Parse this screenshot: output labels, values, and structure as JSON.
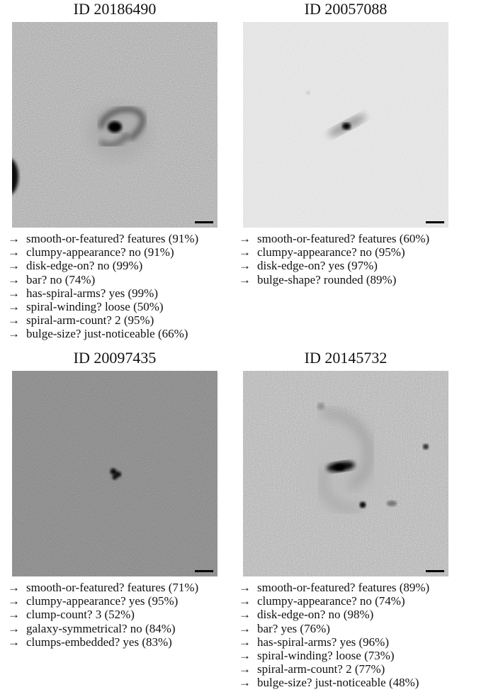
{
  "arrow_glyph": "→",
  "panels": [
    {
      "id_label": "ID 20186490",
      "labels": [
        "smooth-or-featured? features (91%)",
        "clumpy-appearance? no (91%)",
        "disk-edge-on? no (99%)",
        "bar? no (74%)",
        "has-spiral-arms? yes (99%)",
        "spiral-winding? loose (50%)",
        "spiral-arm-count? 2 (95%)",
        "bulge-size? just-noticeable (66%)"
      ]
    },
    {
      "id_label": "ID 20057088",
      "labels": [
        "smooth-or-featured? features (60%)",
        "clumpy-appearance? no (95%)",
        "disk-edge-on? yes (97%)",
        "bulge-shape? rounded (89%)"
      ]
    },
    {
      "id_label": "ID 20097435",
      "labels": [
        "smooth-or-featured? features (71%)",
        "clumpy-appearance? yes (95%)",
        "clump-count? 3 (52%)",
        "galaxy-symmetrical? no (84%)",
        "clumps-embedded? yes (83%)"
      ]
    },
    {
      "id_label": "ID 20145732",
      "labels": [
        "smooth-or-featured? features (89%)",
        "clumpy-appearance? no (74%)",
        "disk-edge-on? no (98%)",
        "bar? yes (76%)",
        "has-spiral-arms? yes (96%)",
        "spiral-winding? loose (73%)",
        "spiral-arm-count? 2 (77%)",
        "bulge-size? just-noticeable (48%)"
      ]
    }
  ]
}
